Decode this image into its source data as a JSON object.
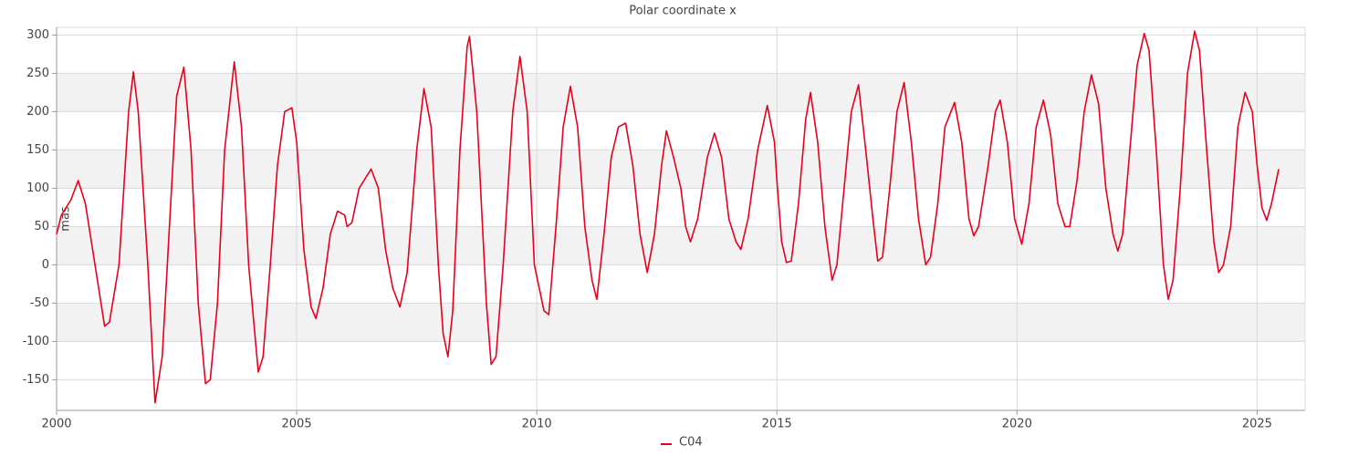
{
  "chart_data": {
    "type": "line",
    "title": "Polar coordinate x",
    "y_label": "mas",
    "xlim": [
      2000,
      2026
    ],
    "xticks": [
      2000,
      2005,
      2010,
      2015,
      2020,
      2025
    ],
    "ylim": [
      -190,
      310
    ],
    "yticks": [
      -150,
      -100,
      -50,
      0,
      50,
      100,
      150,
      200,
      250,
      300
    ],
    "grid": true,
    "legend": "bottom",
    "x": [
      2000.0,
      2000.1,
      2000.3,
      2000.45,
      2000.6,
      2000.8,
      2001.0,
      2001.1,
      2001.3,
      2001.5,
      2001.6,
      2001.7,
      2001.9,
      2002.05,
      2002.2,
      2002.35,
      2002.5,
      2002.65,
      2002.8,
      2002.95,
      2003.1,
      2003.2,
      2003.35,
      2003.5,
      2003.7,
      2003.85,
      2004.0,
      2004.2,
      2004.3,
      2004.45,
      2004.6,
      2004.75,
      2004.9,
      2005.0,
      2005.15,
      2005.3,
      2005.4,
      2005.55,
      2005.7,
      2005.85,
      2006.0,
      2006.05,
      2006.15,
      2006.3,
      2006.45,
      2006.55,
      2006.7,
      2006.85,
      2007.0,
      2007.15,
      2007.3,
      2007.5,
      2007.65,
      2007.8,
      2007.95,
      2008.05,
      2008.15,
      2008.25,
      2008.4,
      2008.55,
      2008.6,
      2008.75,
      2008.95,
      2009.05,
      2009.15,
      2009.3,
      2009.5,
      2009.65,
      2009.8,
      2009.95,
      2010.15,
      2010.25,
      2010.4,
      2010.55,
      2010.7,
      2010.85,
      2011.0,
      2011.15,
      2011.25,
      2011.4,
      2011.55,
      2011.7,
      2011.85,
      2012.0,
      2012.15,
      2012.3,
      2012.45,
      2012.6,
      2012.7,
      2012.85,
      2013.0,
      2013.1,
      2013.2,
      2013.35,
      2013.55,
      2013.7,
      2013.85,
      2014.0,
      2014.15,
      2014.25,
      2014.4,
      2014.6,
      2014.8,
      2014.95,
      2015.0,
      2015.1,
      2015.2,
      2015.3,
      2015.45,
      2015.6,
      2015.7,
      2015.85,
      2016.0,
      2016.15,
      2016.25,
      2016.4,
      2016.55,
      2016.7,
      2016.85,
      2017.0,
      2017.1,
      2017.2,
      2017.35,
      2017.5,
      2017.65,
      2017.8,
      2017.95,
      2018.1,
      2018.2,
      2018.35,
      2018.5,
      2018.7,
      2018.85,
      2019.0,
      2019.1,
      2019.2,
      2019.4,
      2019.55,
      2019.65,
      2019.8,
      2019.95,
      2020.1,
      2020.25,
      2020.4,
      2020.55,
      2020.7,
      2020.85,
      2021.0,
      2021.1,
      2021.25,
      2021.4,
      2021.55,
      2021.7,
      2021.85,
      2022.0,
      2022.1,
      2022.2,
      2022.35,
      2022.5,
      2022.65,
      2022.75,
      2022.9,
      2023.05,
      2023.15,
      2023.25,
      2023.4,
      2023.55,
      2023.7,
      2023.8,
      2023.95,
      2024.1,
      2024.2,
      2024.3,
      2024.45,
      2024.6,
      2024.75,
      2024.9,
      2025.0,
      2025.1,
      2025.2,
      2025.3,
      2025.45
    ],
    "series": [
      {
        "name": "C04",
        "color": "#e8001c",
        "values": [
          40,
          65,
          85,
          110,
          80,
          0,
          -80,
          -75,
          0,
          200,
          252,
          200,
          0,
          -180,
          -120,
          50,
          220,
          258,
          150,
          -50,
          -155,
          -150,
          -50,
          150,
          265,
          180,
          0,
          -140,
          -120,
          0,
          130,
          200,
          205,
          160,
          20,
          -55,
          -70,
          -30,
          40,
          70,
          65,
          50,
          55,
          100,
          115,
          125,
          100,
          20,
          -30,
          -55,
          -10,
          150,
          230,
          180,
          0,
          -90,
          -120,
          -60,
          150,
          285,
          298,
          200,
          -50,
          -130,
          -120,
          0,
          200,
          272,
          200,
          0,
          -60,
          -65,
          50,
          180,
          233,
          180,
          50,
          -20,
          -45,
          40,
          140,
          180,
          185,
          130,
          40,
          -10,
          40,
          130,
          175,
          140,
          100,
          50,
          30,
          60,
          140,
          172,
          140,
          60,
          30,
          20,
          60,
          150,
          208,
          160,
          110,
          30,
          3,
          5,
          80,
          190,
          225,
          160,
          50,
          -20,
          0,
          100,
          200,
          235,
          150,
          60,
          5,
          10,
          100,
          200,
          238,
          160,
          60,
          0,
          10,
          80,
          180,
          212,
          160,
          60,
          38,
          50,
          130,
          200,
          215,
          160,
          60,
          27,
          80,
          180,
          215,
          170,
          80,
          50,
          50,
          110,
          200,
          248,
          210,
          100,
          40,
          18,
          40,
          150,
          260,
          302,
          280,
          150,
          0,
          -45,
          -20,
          100,
          250,
          305,
          280,
          150,
          30,
          -10,
          0,
          50,
          180,
          225,
          200,
          130,
          75,
          58,
          80,
          125
        ]
      }
    ]
  }
}
